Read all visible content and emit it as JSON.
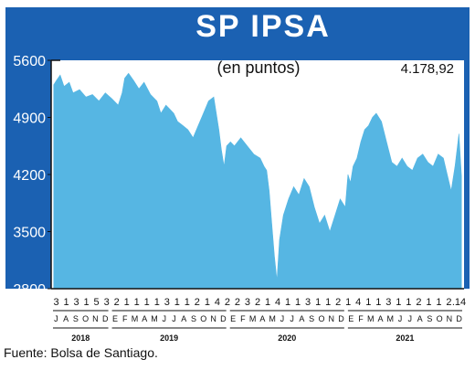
{
  "chart_data": {
    "type": "area",
    "title": "SP IPSA",
    "subtitle": "(en puntos)",
    "last_value_label": "4.178,92",
    "ylim": [
      2800,
      5600
    ],
    "yticks": [
      "5600",
      "4900",
      "4200",
      "3500",
      "2800"
    ],
    "grid": false,
    "colors": {
      "area": "#56b6e3",
      "header": "#1b61b2",
      "title_text": "#ffffff",
      "axis": "#111111"
    },
    "day_labels": [
      "3",
      "1",
      "3",
      "1",
      "5",
      "3",
      "2",
      "1",
      "1",
      "1",
      "1",
      "3",
      "1",
      "1",
      "2",
      "1",
      "4",
      "2",
      "2",
      "3",
      "2",
      "1",
      "4",
      "1",
      "1",
      "3",
      "1",
      "1",
      "2",
      "1",
      "4",
      "1",
      "1",
      "3",
      "1",
      "1",
      "2",
      "1",
      "1",
      "2",
      ".14"
    ],
    "month_labels": [
      "J",
      "A",
      "S",
      "O",
      "N",
      "D",
      "E",
      "F",
      "M",
      "A",
      "M",
      "J",
      "J",
      "A",
      "S",
      "O",
      "N",
      "D",
      "E",
      "F",
      "M",
      "A",
      "M",
      "J",
      "J",
      "A",
      "S",
      "O",
      "N",
      "D",
      "E",
      "F",
      "M",
      "A",
      "M",
      "J",
      "J",
      "A",
      "S",
      "O",
      "N",
      "D"
    ],
    "year_labels": [
      "2018",
      "2019",
      "2020",
      "2021"
    ],
    "series": [
      {
        "x": [
          2018.5,
          2018.52,
          2018.55,
          2018.58,
          2018.62,
          2018.65,
          2018.7,
          2018.75,
          2018.8,
          2018.85,
          2018.9,
          2018.95,
          2019.0,
          2019.03,
          2019.05,
          2019.08,
          2019.12,
          2019.16,
          2019.2,
          2019.25,
          2019.3,
          2019.33,
          2019.37,
          2019.4,
          2019.43,
          2019.46,
          2019.5,
          2019.54,
          2019.58,
          2019.62,
          2019.66,
          2019.7,
          2019.74,
          2019.78,
          2019.8,
          2019.82,
          2019.84,
          2019.87,
          2019.9,
          2019.95,
          2020.0,
          2020.05,
          2020.1,
          2020.13,
          2020.15,
          2020.17,
          2020.19,
          2020.21,
          2020.23,
          2020.25,
          2020.28,
          2020.32,
          2020.36,
          2020.4,
          2020.44,
          2020.48,
          2020.52,
          2020.56,
          2020.6,
          2020.64,
          2020.68,
          2020.72,
          2020.76,
          2020.78,
          2020.8,
          2020.82,
          2020.85,
          2020.88,
          2020.91,
          2020.94,
          2020.97,
          2021.0,
          2021.04,
          2021.08,
          2021.12,
          2021.16,
          2021.2,
          2021.24,
          2021.28,
          2021.32,
          2021.36,
          2021.4,
          2021.44,
          2021.48,
          2021.52,
          2021.55,
          2021.58,
          2021.61,
          2021.64,
          2021.66
        ],
        "values": [
          5300,
          5350,
          5420,
          5280,
          5330,
          5200,
          5240,
          5150,
          5180,
          5100,
          5200,
          5130,
          5050,
          5200,
          5380,
          5440,
          5350,
          5250,
          5330,
          5180,
          5100,
          4950,
          5050,
          5000,
          4950,
          4850,
          4800,
          4750,
          4650,
          4800,
          4950,
          5100,
          5150,
          4750,
          4500,
          4300,
          4550,
          4600,
          4550,
          4650,
          4550,
          4450,
          4400,
          4300,
          4250,
          4000,
          3600,
          3200,
          2900,
          3400,
          3700,
          3900,
          4050,
          3950,
          4150,
          4050,
          3800,
          3600,
          3700,
          3500,
          3700,
          3900,
          3800,
          4200,
          4100,
          4300,
          4400,
          4600,
          4750,
          4800,
          4900,
          4950,
          4850,
          4600,
          4350,
          4300,
          4400,
          4300,
          4250,
          4400,
          4450,
          4350,
          4300,
          4450,
          4400,
          4200,
          4000,
          4300,
          4700,
          4178.92
        ]
      }
    ]
  },
  "source": "Fuente: Bolsa de Santiago."
}
